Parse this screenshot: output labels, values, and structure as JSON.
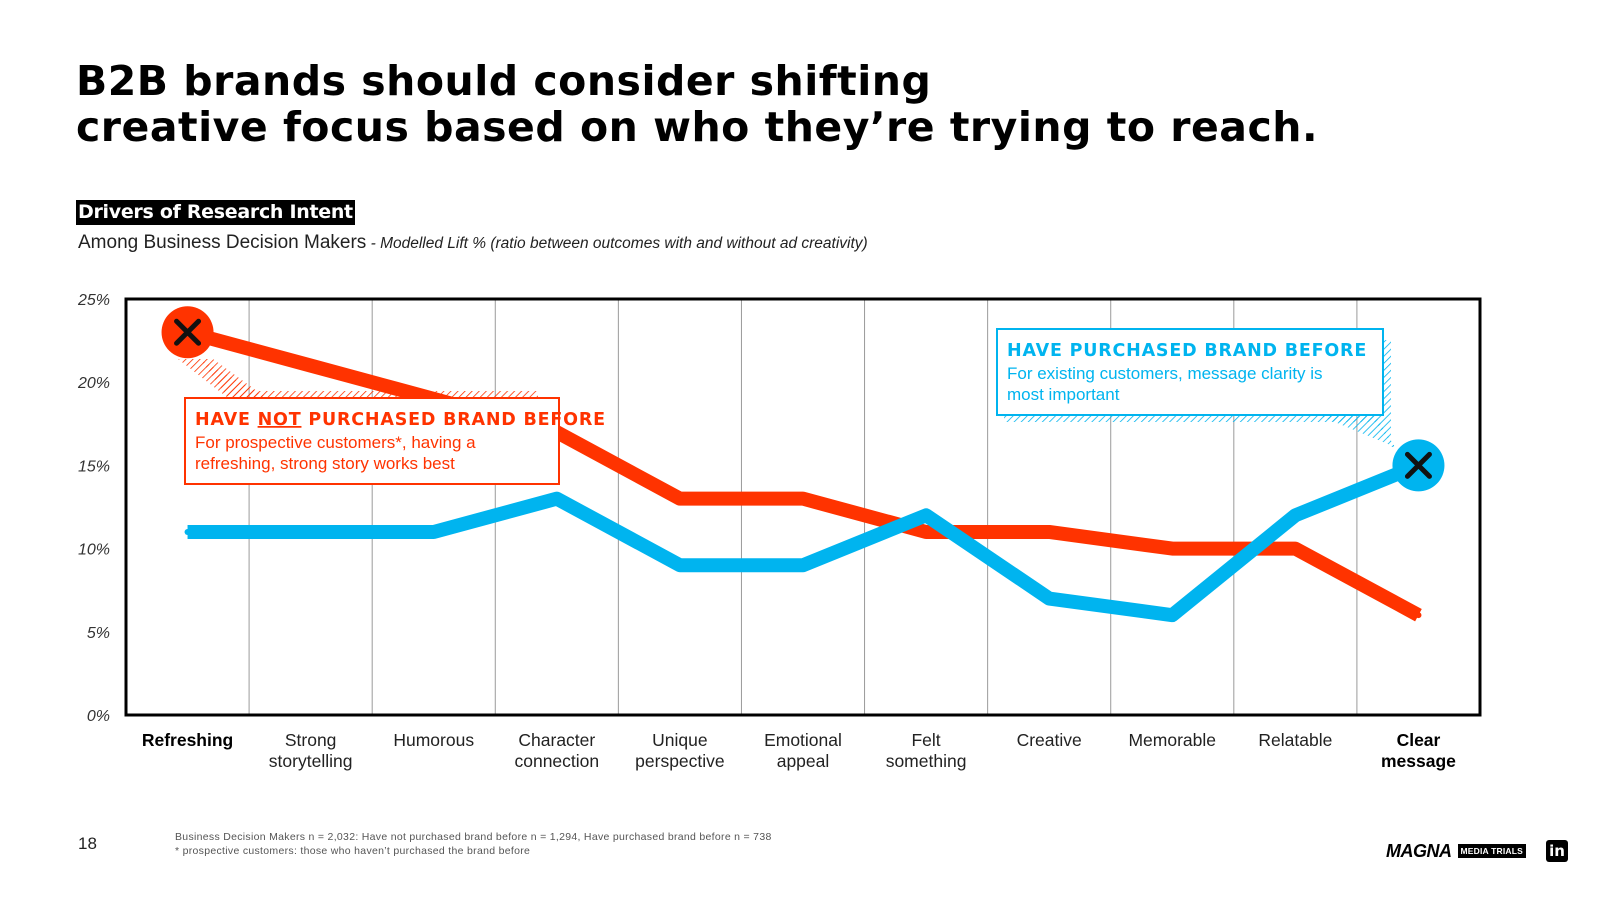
{
  "page": {
    "title_lines": [
      "B2B brands should consider shifting",
      "creative focus based on who they’re trying to reach."
    ],
    "drivers_label": "Drivers of Research Intent",
    "subtitle": "Among Business Decision Makers",
    "subtitle_note": " - Modelled Lift % (ratio between outcomes with and without ad creativity)",
    "page_number": "18",
    "footnotes": [
      "Business Decision Makers n = 2,032: Have not purchased brand before n = 1,294, Have purchased brand before n = 738",
      "* prospective customers: those who haven’t purchased the brand before"
    ],
    "logos": {
      "magna": "MAGNA",
      "media_trials": "MEDIA TRIALS",
      "linkedin": "in"
    }
  },
  "colors": {
    "red": "#ff3300",
    "blue": "#00b4ef",
    "axis": "#000000",
    "grid": "#9a9a9a"
  },
  "chart_data": {
    "type": "line",
    "categories": [
      "Refreshing",
      "Strong storytelling",
      "Humorous",
      "Character connection",
      "Unique perspective",
      "Emotional appeal",
      "Felt something",
      "Creative",
      "Memorable",
      "Relatable",
      "Clear message"
    ],
    "category_labels": [
      [
        "Refreshing"
      ],
      [
        "Strong",
        "storytelling"
      ],
      [
        "Humorous"
      ],
      [
        "Character",
        "connection"
      ],
      [
        "Unique",
        "perspective"
      ],
      [
        "Emotional",
        "appeal"
      ],
      [
        "Felt",
        "something"
      ],
      [
        "Creative"
      ],
      [
        "Memorable"
      ],
      [
        "Relatable"
      ],
      [
        "Clear",
        "message"
      ]
    ],
    "bold_categories": [
      0,
      10
    ],
    "series": [
      {
        "name": "Have not purchased brand before",
        "color": "#ff3300",
        "values": [
          23,
          21,
          19,
          17,
          13,
          13,
          11,
          11,
          10,
          10,
          6
        ],
        "marker_index": 0
      },
      {
        "name": "Have purchased brand before",
        "color": "#00b4ef",
        "values": [
          11,
          11,
          11,
          13,
          9,
          9,
          12,
          7,
          6,
          12,
          15
        ],
        "marker_index": 10
      }
    ],
    "ylim": [
      0,
      25
    ],
    "yticks": [
      0,
      5,
      10,
      15,
      20,
      25
    ],
    "ytick_labels": [
      "0%",
      "5%",
      "10%",
      "15%",
      "20%",
      "25%"
    ],
    "grid": true,
    "annotations": [
      {
        "series": 0,
        "heading_parts": [
          "HAVE ",
          "NOT",
          " PURCHASED BRAND BEFORE"
        ],
        "underline_part": 1,
        "body_lines": [
          "For prospective customers*, having a",
          "refreshing, strong story works best"
        ]
      },
      {
        "series": 1,
        "heading_parts": [
          "HAVE PURCHASED BRAND BEFORE"
        ],
        "underline_part": -1,
        "body_lines": [
          "For existing customers, message clarity is",
          "most important"
        ]
      }
    ]
  }
}
